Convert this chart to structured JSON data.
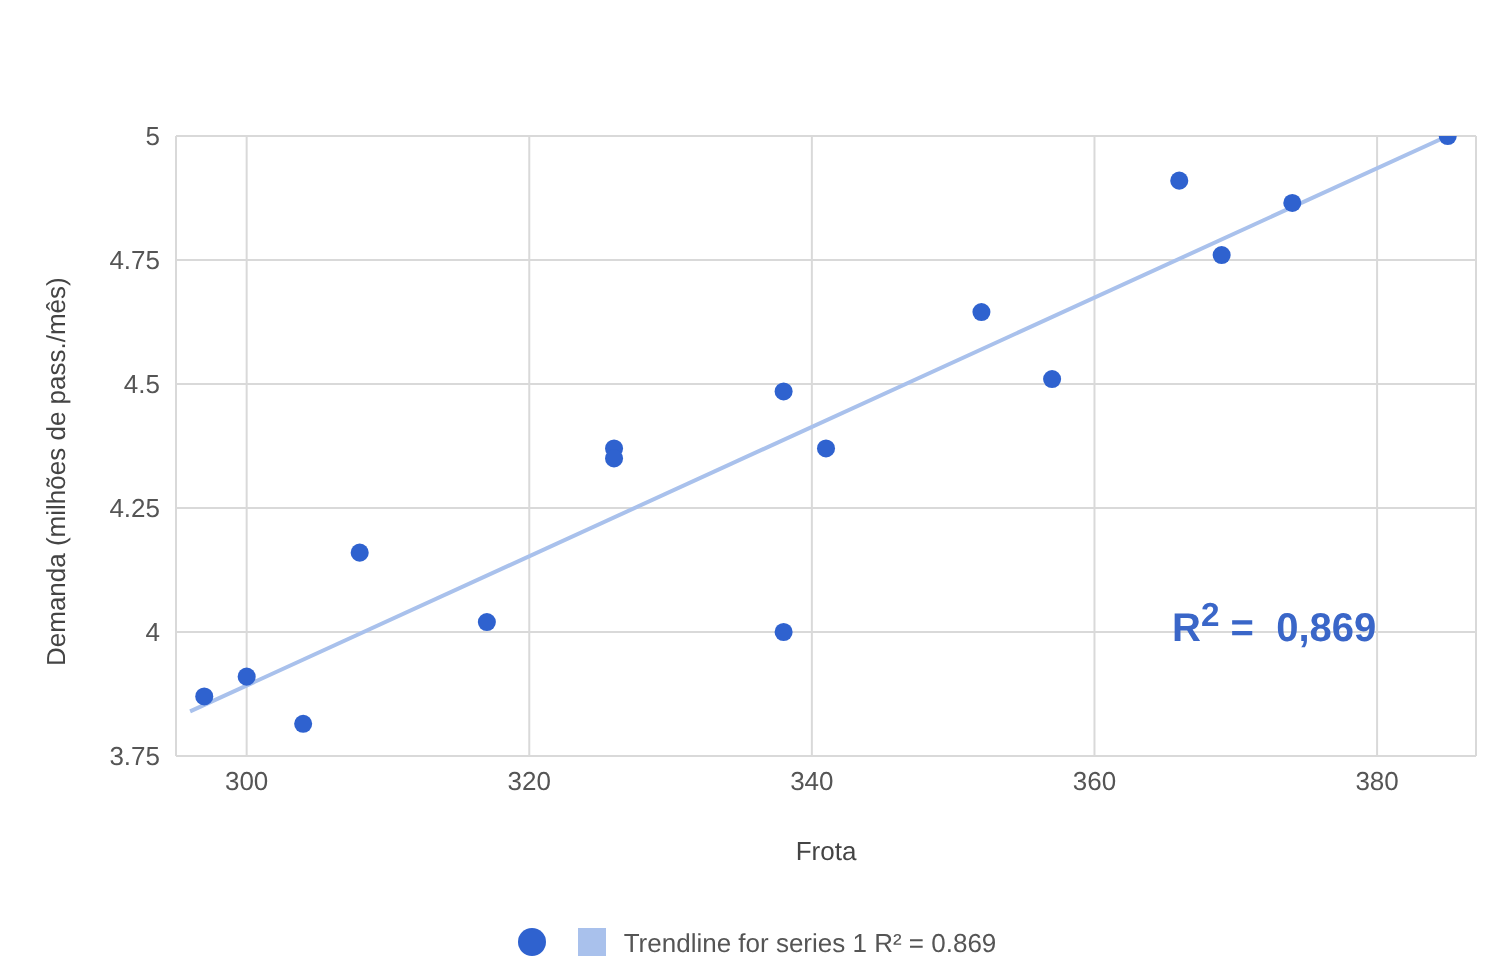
{
  "chart_data": {
    "type": "scatter",
    "xlabel": "Frota",
    "ylabel": "Demanda (milhões de pass./mês)",
    "series": [
      {
        "marker": "circle",
        "color": "#2f62cf",
        "x": [
          297,
          300,
          304,
          308,
          317,
          326,
          326,
          338,
          338,
          341,
          352,
          357,
          366,
          369,
          374,
          385
        ],
        "values": [
          3.87,
          3.91,
          3.815,
          4.16,
          4.02,
          4.37,
          4.35,
          4.485,
          4.0,
          4.37,
          4.645,
          4.51,
          4.91,
          4.76,
          4.865,
          5.0
        ]
      },
      {
        "type": "line",
        "name": "Trendline for series 1 R² = 0.869",
        "color": "#a9c1ec",
        "x": [
          296,
          385
        ],
        "values": [
          3.84,
          5.0
        ]
      }
    ],
    "xlim": [
      295,
      387
    ],
    "xticks": [
      300,
      320,
      340,
      360,
      380
    ],
    "ylim": [
      3.75,
      5
    ],
    "yticks": [
      3.75,
      {
        "value": 4,
        "label": "4"
      },
      4.25,
      {
        "value": 4.5,
        "label": "4.5"
      },
      4.75,
      5
    ],
    "grid": true,
    "legend": "bottom",
    "annotations": [
      "R$^{2}$ =  0,869"
    ]
  }
}
